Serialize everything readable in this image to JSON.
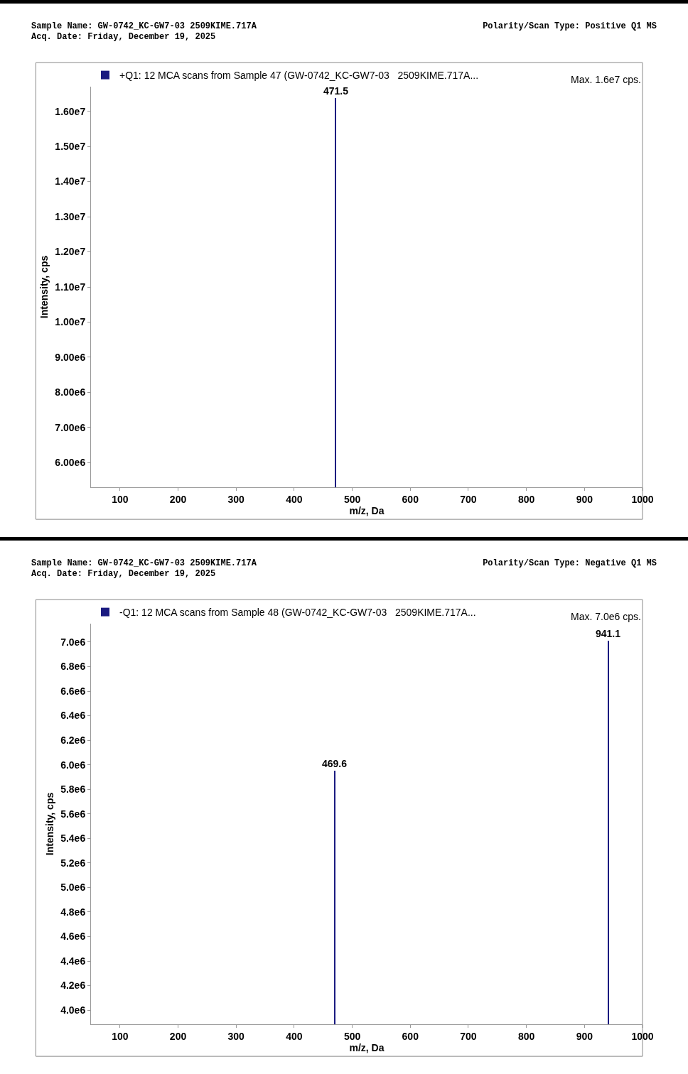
{
  "chart_data": [
    {
      "type": "bar",
      "title": null,
      "xlabel": "m/z, Da",
      "ylabel": "Intensity, cps",
      "legend": "top left",
      "grid": false,
      "xlim": [
        50,
        1000
      ],
      "xticks": [
        100,
        200,
        300,
        400,
        500,
        600,
        700,
        800,
        900,
        1000
      ],
      "ylim": [
        5300000,
        16700000
      ],
      "yticks": [
        {
          "value": 6000000,
          "label": "6.00e6"
        },
        {
          "value": 7000000,
          "label": "7.00e6"
        },
        {
          "value": 8000000,
          "label": "8.00e6"
        },
        {
          "value": 9000000,
          "label": "9.00e6"
        },
        {
          "value": 10000000,
          "label": "1.00e7"
        },
        {
          "value": 11000000,
          "label": "1.10e7"
        },
        {
          "value": 12000000,
          "label": "1.20e7"
        },
        {
          "value": 13000000,
          "label": "1.30e7"
        },
        {
          "value": 14000000,
          "label": "1.40e7"
        },
        {
          "value": 15000000,
          "label": "1.50e7"
        },
        {
          "value": 16000000,
          "label": "1.60e7"
        }
      ],
      "series": [
        {
          "name": "+Q1: 12 MCA scans from Sample 47 (GW-0742_KC-GW7-03   2509KIME.717A...",
          "color": "#1a1a80",
          "x": [
            471.5
          ],
          "values": [
            16370000
          ]
        }
      ],
      "annotations": [
        "Sample Name: GW-0742_KC-GW7-03   2509KIME.717A",
        "Acq. Date: Friday, December 19, 2025",
        "Polarity/Scan Type: Positive Q1 MS",
        "Max. 1.6e7 cps.",
        {
          "text": "471.5",
          "x": 471.5,
          "y": 16370000
        }
      ]
    },
    {
      "type": "bar",
      "title": null,
      "xlabel": "m/z, Da",
      "ylabel": "Intensity, cps",
      "legend": "top left",
      "grid": false,
      "xlim": [
        50,
        1000
      ],
      "xticks": [
        100,
        200,
        300,
        400,
        500,
        600,
        700,
        800,
        900,
        1000
      ],
      "ylim": [
        3885000,
        7150000
      ],
      "yticks": [
        {
          "value": 4000000,
          "label": "4.0e6"
        },
        {
          "value": 4200000,
          "label": "4.2e6"
        },
        {
          "value": 4400000,
          "label": "4.4e6"
        },
        {
          "value": 4600000,
          "label": "4.6e6"
        },
        {
          "value": 4800000,
          "label": "4.8e6"
        },
        {
          "value": 5000000,
          "label": "5.0e6"
        },
        {
          "value": 5200000,
          "label": "5.2e6"
        },
        {
          "value": 5400000,
          "label": "5.4e6"
        },
        {
          "value": 5600000,
          "label": "5.6e6"
        },
        {
          "value": 5800000,
          "label": "5.8e6"
        },
        {
          "value": 6000000,
          "label": "6.0e6"
        },
        {
          "value": 6200000,
          "label": "6.2e6"
        },
        {
          "value": 6400000,
          "label": "6.4e6"
        },
        {
          "value": 6600000,
          "label": "6.6e6"
        },
        {
          "value": 6800000,
          "label": "6.8e6"
        },
        {
          "value": 7000000,
          "label": "7.0e6"
        }
      ],
      "series": [
        {
          "name": "-Q1: 12 MCA scans from Sample 48 (GW-0742_KC-GW7-03   2509KIME.717A...",
          "color": "#1a1a80",
          "x": [
            469.6,
            941.1
          ],
          "values": [
            5950000,
            7010000
          ]
        }
      ],
      "annotations": [
        "Sample Name: GW-0742_KC-GW7-03   2509KIME.717A",
        "Acq. Date: Friday, December 19, 2025",
        "Polarity/Scan Type: Negative Q1 MS",
        "Max. 7.0e6 cps.",
        {
          "text": "469.6",
          "x": 469.6,
          "y": 5950000
        },
        {
          "text": "941.1",
          "x": 941.1,
          "y": 7010000
        }
      ]
    }
  ]
}
